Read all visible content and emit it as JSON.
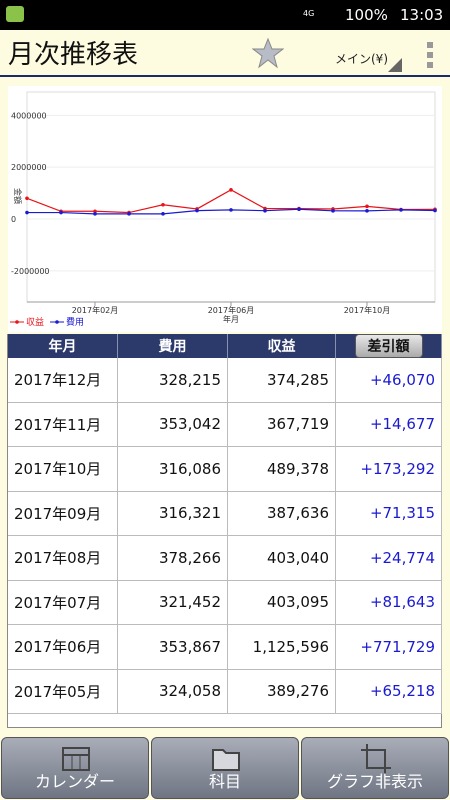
{
  "status_bar": {
    "network": "4G",
    "battery": "100%",
    "time": "13:03"
  },
  "header": {
    "title": "月次推移表",
    "selector": "メイン(¥)"
  },
  "chart_data": {
    "type": "line",
    "ylabel": "金額",
    "xlabel": "年月",
    "categories": [
      null,
      null,
      "2017年02月",
      null,
      null,
      null,
      "2017年06月",
      null,
      null,
      null,
      "2017年10月",
      null,
      null
    ],
    "series": [
      {
        "name": "収益",
        "color": "#e8141a",
        "values": [
          800000,
          300000,
          300000,
          250000,
          550000,
          389276,
          1125596,
          403095,
          403040,
          387636,
          489378,
          367719,
          374285
        ]
      },
      {
        "name": "費用",
        "color": "#1a1ad0",
        "values": [
          250000,
          250000,
          200000,
          200000,
          200000,
          324058,
          353867,
          321452,
          378266,
          316321,
          316086,
          353042,
          328215
        ]
      }
    ],
    "ylim": [
      -3200000,
      4900000
    ],
    "yticks": [
      -2000000,
      0,
      2000000,
      4000000
    ],
    "legend": "bottom-left"
  },
  "table": {
    "columns": [
      "年月",
      "費用",
      "収益",
      "差引額"
    ],
    "rows": [
      [
        "2017年12月",
        "328,215",
        "374,285",
        "+46,070"
      ],
      [
        "2017年11月",
        "353,042",
        "367,719",
        "+14,677"
      ],
      [
        "2017年10月",
        "316,086",
        "489,378",
        "+173,292"
      ],
      [
        "2017年09月",
        "316,321",
        "387,636",
        "+71,315"
      ],
      [
        "2017年08月",
        "378,266",
        "403,040",
        "+24,774"
      ],
      [
        "2017年07月",
        "321,452",
        "403,095",
        "+81,643"
      ],
      [
        "2017年06月",
        "353,867",
        "1,125,596",
        "+771,729"
      ],
      [
        "2017年05月",
        "324,058",
        "389,276",
        "+65,218"
      ]
    ]
  },
  "toolbar": {
    "buttons": [
      "カレンダー",
      "科目",
      "グラフ非表示"
    ]
  }
}
